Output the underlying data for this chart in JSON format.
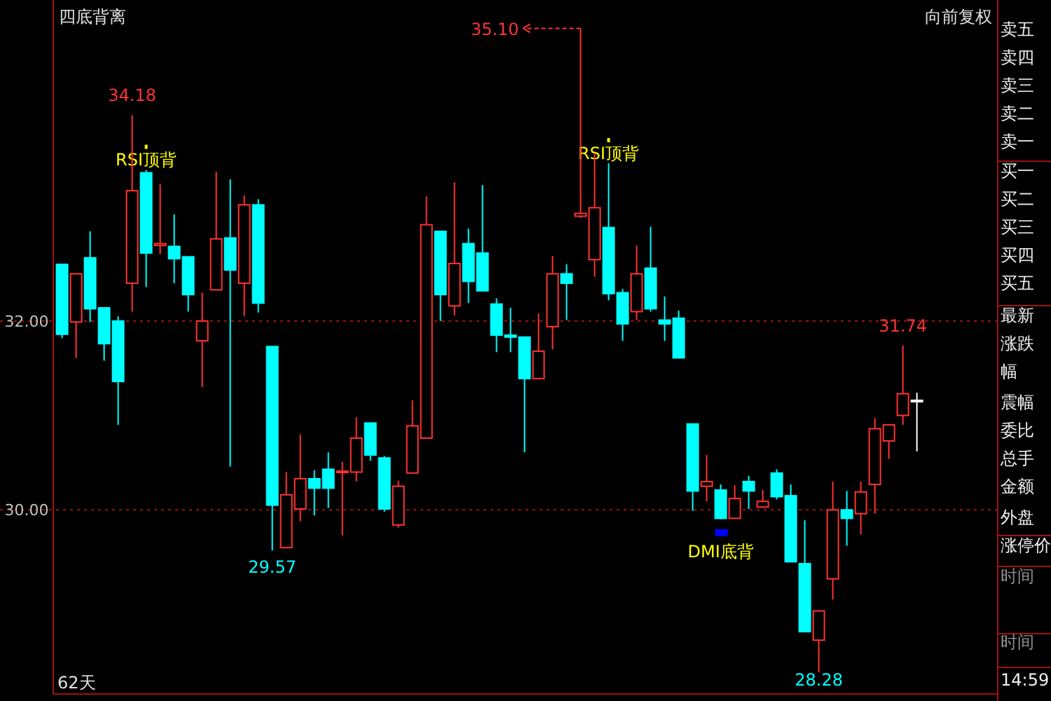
{
  "chart_data": {
    "type": "candlestick",
    "title": "四底背离",
    "categories": [
      null,
      null,
      null,
      null,
      null,
      null,
      null,
      null,
      null,
      null,
      null,
      null,
      null,
      null,
      null,
      null,
      null,
      null,
      null,
      null,
      null,
      null,
      null,
      null,
      null,
      null,
      null,
      null,
      null,
      null,
      null,
      null,
      null,
      null,
      null,
      null,
      null,
      null,
      null,
      null,
      null,
      null,
      null,
      null,
      null,
      null,
      null,
      null,
      null,
      null,
      null,
      null,
      null,
      null,
      null,
      null,
      null,
      null,
      null,
      null,
      null,
      null
    ],
    "ohlc": [
      [
        32.6,
        32.6,
        31.82,
        31.86
      ],
      [
        31.99,
        32.5,
        31.61,
        32.5
      ],
      [
        32.67,
        32.95,
        31.99,
        32.13
      ],
      [
        32.14,
        32.14,
        31.58,
        31.76
      ],
      [
        32.0,
        32.05,
        30.9,
        31.36
      ],
      [
        32.4,
        34.18,
        32.1,
        33.38
      ],
      [
        33.57,
        33.6,
        32.36,
        32.72
      ],
      [
        32.8,
        33.45,
        32.71,
        32.82
      ],
      [
        32.79,
        33.13,
        32.4,
        32.66
      ],
      [
        32.68,
        32.68,
        32.1,
        32.28
      ],
      [
        31.79,
        32.3,
        31.3,
        32.0
      ],
      [
        32.33,
        33.58,
        32.33,
        32.87
      ],
      [
        32.88,
        33.5,
        30.46,
        32.54
      ],
      [
        32.4,
        33.33,
        32.05,
        33.23
      ],
      [
        33.23,
        33.29,
        32.09,
        32.19
      ],
      [
        31.73,
        31.73,
        29.57,
        30.05
      ],
      [
        29.6,
        30.4,
        29.6,
        30.16
      ],
      [
        30.01,
        30.8,
        29.88,
        30.33
      ],
      [
        30.33,
        30.42,
        29.94,
        30.23
      ],
      [
        30.43,
        30.61,
        30.02,
        30.23
      ],
      [
        30.4,
        30.51,
        29.73,
        30.41
      ],
      [
        30.4,
        30.98,
        30.3,
        30.76
      ],
      [
        30.92,
        30.92,
        30.52,
        30.58
      ],
      [
        30.55,
        30.57,
        29.98,
        30.01
      ],
      [
        29.84,
        30.31,
        29.81,
        30.25
      ],
      [
        30.39,
        31.16,
        30.39,
        30.89
      ],
      [
        30.76,
        33.32,
        30.76,
        33.02
      ],
      [
        32.95,
        32.95,
        32.0,
        32.28
      ],
      [
        32.16,
        33.47,
        32.06,
        32.61
      ],
      [
        32.82,
        32.98,
        32.19,
        32.42
      ],
      [
        32.72,
        33.44,
        32.32,
        32.32
      ],
      [
        32.18,
        32.24,
        31.67,
        31.85
      ],
      [
        31.85,
        32.14,
        31.67,
        31.83
      ],
      [
        31.83,
        31.83,
        30.61,
        31.39
      ],
      [
        31.39,
        32.08,
        31.39,
        31.68
      ],
      [
        31.94,
        32.69,
        31.7,
        32.5
      ],
      [
        32.5,
        32.6,
        32.01,
        32.4
      ],
      [
        33.11,
        35.1,
        33.09,
        33.14
      ],
      [
        32.65,
        33.78,
        32.47,
        33.2
      ],
      [
        32.99,
        33.67,
        32.22,
        32.29
      ],
      [
        32.3,
        32.34,
        31.79,
        31.97
      ],
      [
        32.1,
        32.8,
        32.01,
        32.5
      ],
      [
        32.56,
        33.0,
        32.1,
        32.13
      ],
      [
        32.01,
        32.26,
        31.79,
        31.97
      ],
      [
        32.03,
        32.11,
        31.61,
        31.61
      ],
      [
        30.91,
        30.91,
        29.99,
        30.2
      ],
      [
        30.25,
        30.58,
        30.09,
        30.3
      ],
      [
        30.21,
        30.27,
        29.9,
        29.91
      ],
      [
        29.91,
        30.26,
        29.91,
        30.12
      ],
      [
        30.3,
        30.36,
        30.01,
        30.2
      ],
      [
        30.03,
        30.21,
        30.03,
        30.09
      ],
      [
        30.39,
        30.43,
        30.11,
        30.14
      ],
      [
        30.15,
        30.27,
        29.45,
        29.45
      ],
      [
        29.43,
        29.89,
        28.71,
        28.71
      ],
      [
        28.62,
        28.93,
        28.28,
        28.93
      ],
      [
        29.27,
        30.3,
        29.05,
        30.0
      ],
      [
        30.0,
        30.2,
        29.62,
        29.91
      ],
      [
        29.96,
        30.3,
        29.74,
        30.19
      ],
      [
        30.27,
        30.97,
        29.96,
        30.86
      ],
      [
        30.73,
        30.9,
        30.54,
        30.9
      ],
      [
        31.0,
        31.74,
        30.9,
        31.23
      ],
      [
        31.16,
        31.24,
        30.62,
        31.16
      ]
    ],
    "colors": [
      "#00ffff",
      "#ff3232",
      "#00ffff",
      "#00ffff",
      "#00ffff",
      "#ff3232",
      "#00ffff",
      "#ff3232",
      "#00ffff",
      "#00ffff",
      "#ff3232",
      "#ff3232",
      "#00ffff",
      "#ff3232",
      "#00ffff",
      "#00ffff",
      "#ff3232",
      "#ff3232",
      "#00ffff",
      "#00ffff",
      "#ff3232",
      "#ff3232",
      "#00ffff",
      "#00ffff",
      "#ff3232",
      "#ff3232",
      "#ff3232",
      "#00ffff",
      "#ff3232",
      "#00ffff",
      "#00ffff",
      "#00ffff",
      "#00ffff",
      "#00ffff",
      "#ff3232",
      "#ff3232",
      "#00ffff",
      "#ff3232",
      "#ff3232",
      "#00ffff",
      "#00ffff",
      "#ff3232",
      "#00ffff",
      "#00ffff",
      "#00ffff",
      "#00ffff",
      "#ff3232",
      "#00ffff",
      "#ff3232",
      "#00ffff",
      "#ff3232",
      "#00ffff",
      "#00ffff",
      "#00ffff",
      "#ff3232",
      "#ff3232",
      "#00ffff",
      "#ff3232",
      "#ff3232",
      "#ff3232",
      "#ff3232",
      "#ffffff"
    ],
    "ylim": [
      28.05,
      35.4
    ],
    "yticks": [
      {
        "value": 30,
        "label": "30.00"
      },
      {
        "value": 32,
        "label": "32.00"
      }
    ],
    "grid": "y",
    "annotations": [
      "向前复权",
      "62天",
      {
        "text": "34.18",
        "y": 34.18
      },
      "35.10",
      {
        "text": "29.57",
        "y": 29.57
      },
      {
        "text": "31.74",
        "y": 31.74
      },
      {
        "text": "28.28",
        "y": 28.28
      },
      {
        "text": "RSI顶背",
        "y": 33.6
      },
      {
        "text": "RSI顶背",
        "y": 33.67
      },
      {
        "text": "DMI底背",
        "y": 29.9
      },
      "卖五",
      "卖四",
      "卖三",
      "卖二",
      "卖一",
      "买一",
      "买二",
      "买三",
      "买四",
      "买五",
      "最新",
      "涨跌",
      "幅",
      "震幅",
      "委比",
      "总手",
      "金额",
      "外盘",
      "涨停价",
      "时间",
      "时间",
      "14:59"
    ]
  }
}
